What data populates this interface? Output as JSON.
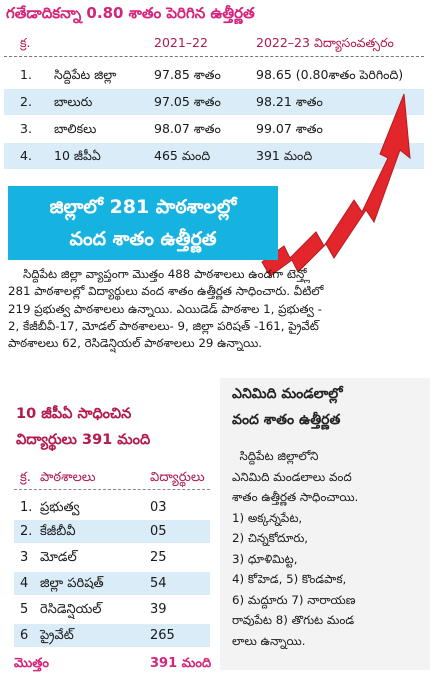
{
  "headline": "గతేడాదికన్నా 0.80 శాతం పెరిగిన ఉత్తీర్ణత",
  "top_table": {
    "header": [
      "క్ర.",
      "",
      "2021–22",
      "2022–23 విద్యాసంవత్సరం"
    ],
    "rows": [
      {
        "num": "1.",
        "name": "సిద్దిపేట జిల్లా",
        "v1": "97.85 శాతం",
        "v2": "98.65 (0.80శాతం పెరిగింది)"
      },
      {
        "num": "2.",
        "name": "బాలురు",
        "v1": "97.05 శాతం",
        "v2": "98.21 శాతం"
      },
      {
        "num": "3.",
        "name": "బాలికలు",
        "v1": "98.07 శాతం",
        "v2": "99.07 శాతం"
      },
      {
        "num": "4.",
        "name": "10 జీపీఏ",
        "v1": "465 మంది",
        "v2": "391 మంది"
      }
    ]
  },
  "banner": {
    "line1": "జిల్లాలో 281 పాఠశాలల్లో",
    "line2": "వంద శాతం ఉత్తీర్ణత"
  },
  "paragraph": [
    "    సిద్దిపేట జిల్లా వ్యాప్తంగా మొత్తం 488 పాఠశాలలు ఉండగా టెన్త్లో",
    "281 పాఠశాలల్లో విద్యార్థులు వంద శాతం ఉత్తీర్ణత సాధించారు. వీటిలో",
    "219 ప్రభుత్వ పాఠశాలలు ఉన్నాయి. ఎయిడెడ్ పాఠశాల 1, ప్రభుత్వ -",
    "2, కేజీబీవీ-17, మోడల్ పాఠశాలలు- 9, జిల్లా పరిషత్ -161, ప్రైవేట్",
    "పాఠశాలలు 62, రెసిడెన్షియల్ పాఠశాలలు 29 ఉన్నాయి."
  ],
  "bottom_left": {
    "title_line1": "10 జీపీఏ సాధించిన",
    "title_line2": "విద్యార్థులు 391 మంది",
    "header": [
      "క్ర.",
      "పాఠశాలలు",
      "విద్యార్థులు"
    ],
    "rows": [
      {
        "i": "1.",
        "name": "ప్రభుత్వ",
        "count": "03"
      },
      {
        "i": "2.",
        "name": "కేజీబీవీ",
        "count": "05"
      },
      {
        "i": "3",
        "name": "మోడల్",
        "count": "25"
      },
      {
        "i": "4",
        "name": "జిల్లా పరిషత్",
        "count": "54"
      },
      {
        "i": "5",
        "name": "రెసిడెన్షియల్",
        "count": "39"
      },
      {
        "i": "6",
        "name": "ప్రైవేట్",
        "count": "265"
      }
    ],
    "total_label": "మొత్తం",
    "total_value": "391 మంది"
  },
  "bottom_right": {
    "title_line1": "ఎనిమిది మండలాల్లో",
    "title_line2": "వంద శాతం ఉత్తీర్ణత",
    "lines": [
      "  సిద్దిపేట జిల్లాలోని",
      "ఎనిమిది మండలాలు వంద",
      "శాతం ఉత్తీర్ణత సాధించాయి.",
      "1) అక్కన్నపేట,",
      "2) చిన్నకోదూరు,",
      "3) ధూళిమిట్ట,",
      "4) కోహెడ, 5) కొండపాక,",
      "6) మద్దూరు 7) నారాయణ",
      "రావుపేట 8) తొగుట మండ",
      "లాలు ఉన్నాయి."
    ]
  },
  "colors": {
    "headline": "#d6247a",
    "accent": "#b3194a",
    "banner": "#17b3e0",
    "row_shade": "#d9ecf7",
    "arrow": "#e3262b",
    "box_bg": "#f3f3f3"
  }
}
